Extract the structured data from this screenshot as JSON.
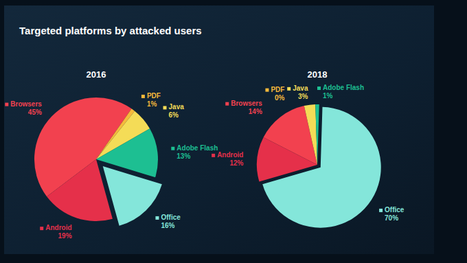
{
  "title": "Targeted platforms by attacked users",
  "chart_data": [
    {
      "type": "pie",
      "title": "2016",
      "categories": [
        "Browsers",
        "PDF",
        "Java",
        "Adobe Flash",
        "Office",
        "Android"
      ],
      "values": [
        45,
        1,
        6,
        13,
        16,
        19
      ],
      "value_labels": [
        "45%",
        "1%",
        "6%",
        "13%",
        "16%",
        "19%"
      ],
      "colors": [
        "#f2414f",
        "#f6b93b",
        "#f4dc57",
        "#1dbf92",
        "#84e6da",
        "#e5304a"
      ],
      "data_labels": true
    },
    {
      "type": "pie",
      "title": "2018",
      "categories": [
        "Browsers",
        "PDF",
        "Java",
        "Adobe Flash",
        "Office",
        "Android"
      ],
      "values": [
        14,
        0,
        3,
        1,
        70,
        12
      ],
      "value_labels": [
        "14%",
        "0%",
        "3%",
        "1%",
        "70%",
        "12%"
      ],
      "colors": [
        "#f2414f",
        "#f6b93b",
        "#f4dc57",
        "#1dbf92",
        "#84e6da",
        "#e5304a"
      ],
      "data_labels": true
    }
  ]
}
